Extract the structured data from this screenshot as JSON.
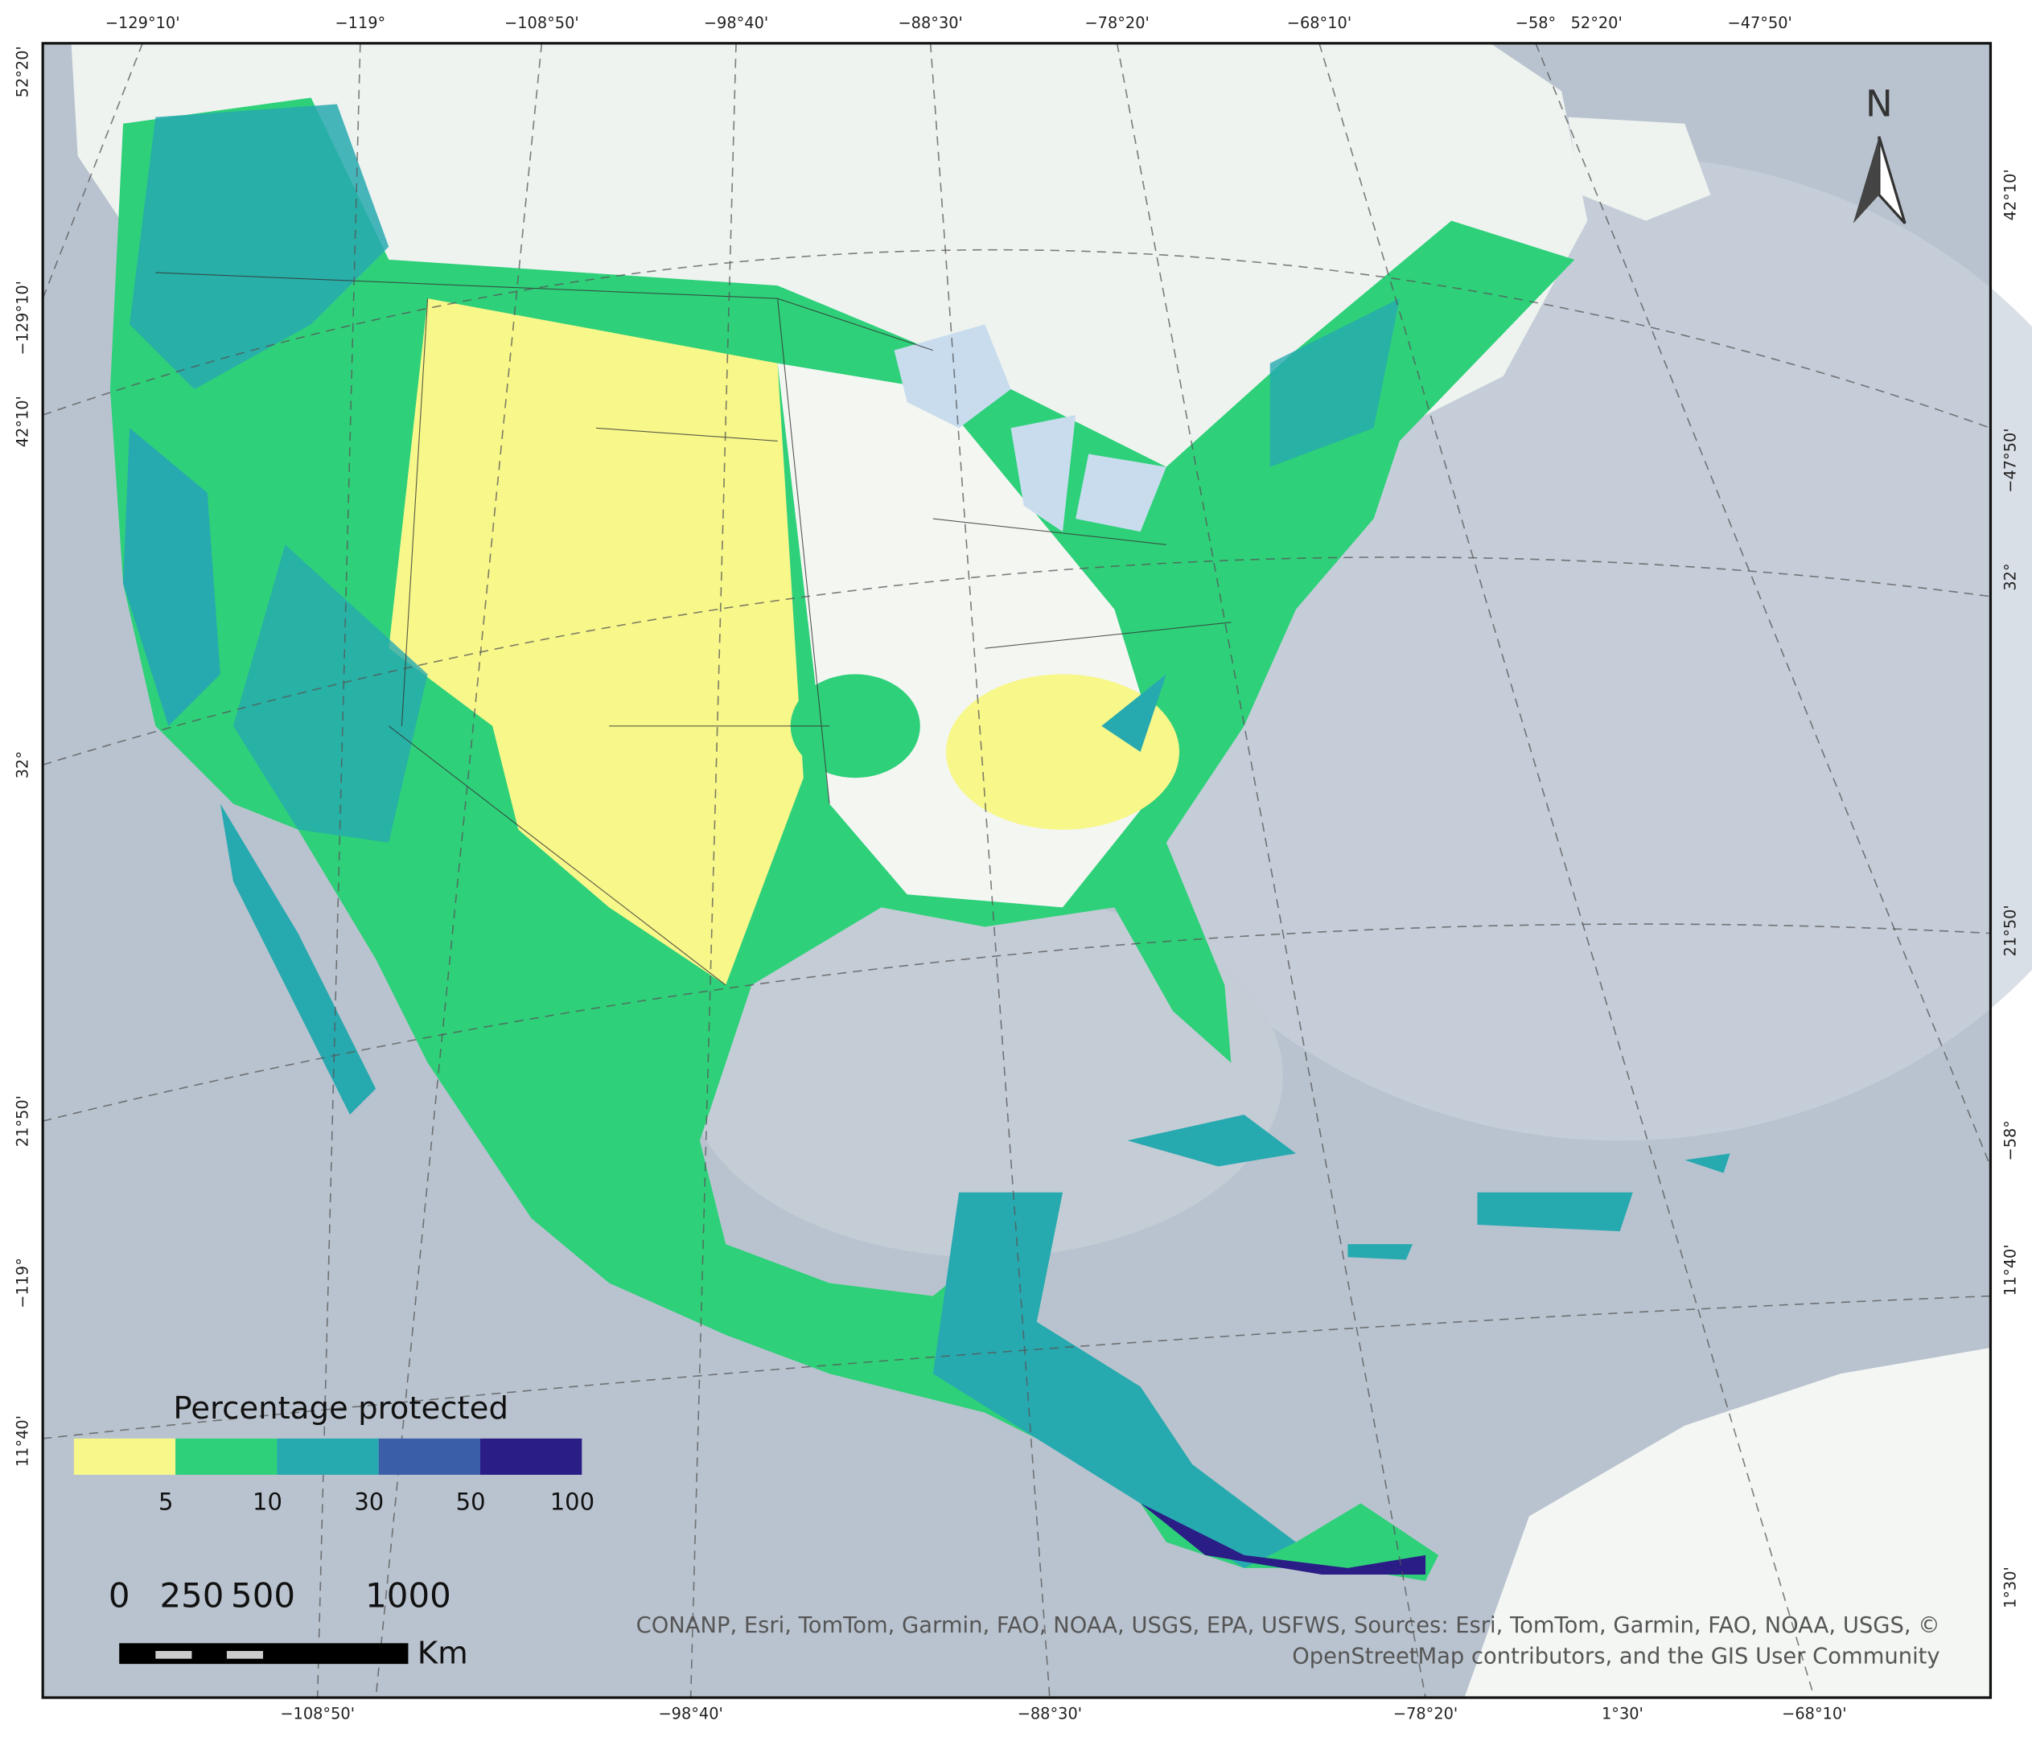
{
  "legend": {
    "title": "Percentage protected",
    "colors": [
      "#f7f78a",
      "#2fd07a",
      "#27a9b0",
      "#3a5ea8",
      "#2a1d86"
    ],
    "labels": [
      "5",
      "10",
      "30",
      "50",
      "100"
    ]
  },
  "scale_bar": {
    "labels": [
      "0",
      "250",
      "500",
      "1000"
    ],
    "unit": "Km"
  },
  "north_arrow": "N",
  "attribution": [
    "CONANP, Esri, TomTom, Garmin, FAO, NOAA, USGS, EPA, USFWS, Sources: Esri, TomTom, Garmin, FAO, NOAA, USGS, ©",
    "OpenStreetMap contributors, and the GIS User Community"
  ],
  "coordinates": {
    "top": [
      "−129°10'",
      "−119°",
      "−108°50'",
      "−98°40'",
      "−88°30'",
      "−78°20'",
      "−68°10'",
      "−58°",
      "52°20'",
      "−47°50'"
    ],
    "bottom": [
      "−108°50'",
      "−98°40'",
      "−88°30'",
      "−78°20'",
      "1°30'",
      "−68°10'"
    ],
    "left": [
      "52°20'",
      "−129°10'",
      "42°10'",
      "32°",
      "21°50'",
      "−119°",
      "11°40'"
    ],
    "right": [
      "42°10'",
      "−47°50'",
      "32°",
      "21°50'",
      "−58°",
      "11°40'",
      "1°30'"
    ]
  }
}
